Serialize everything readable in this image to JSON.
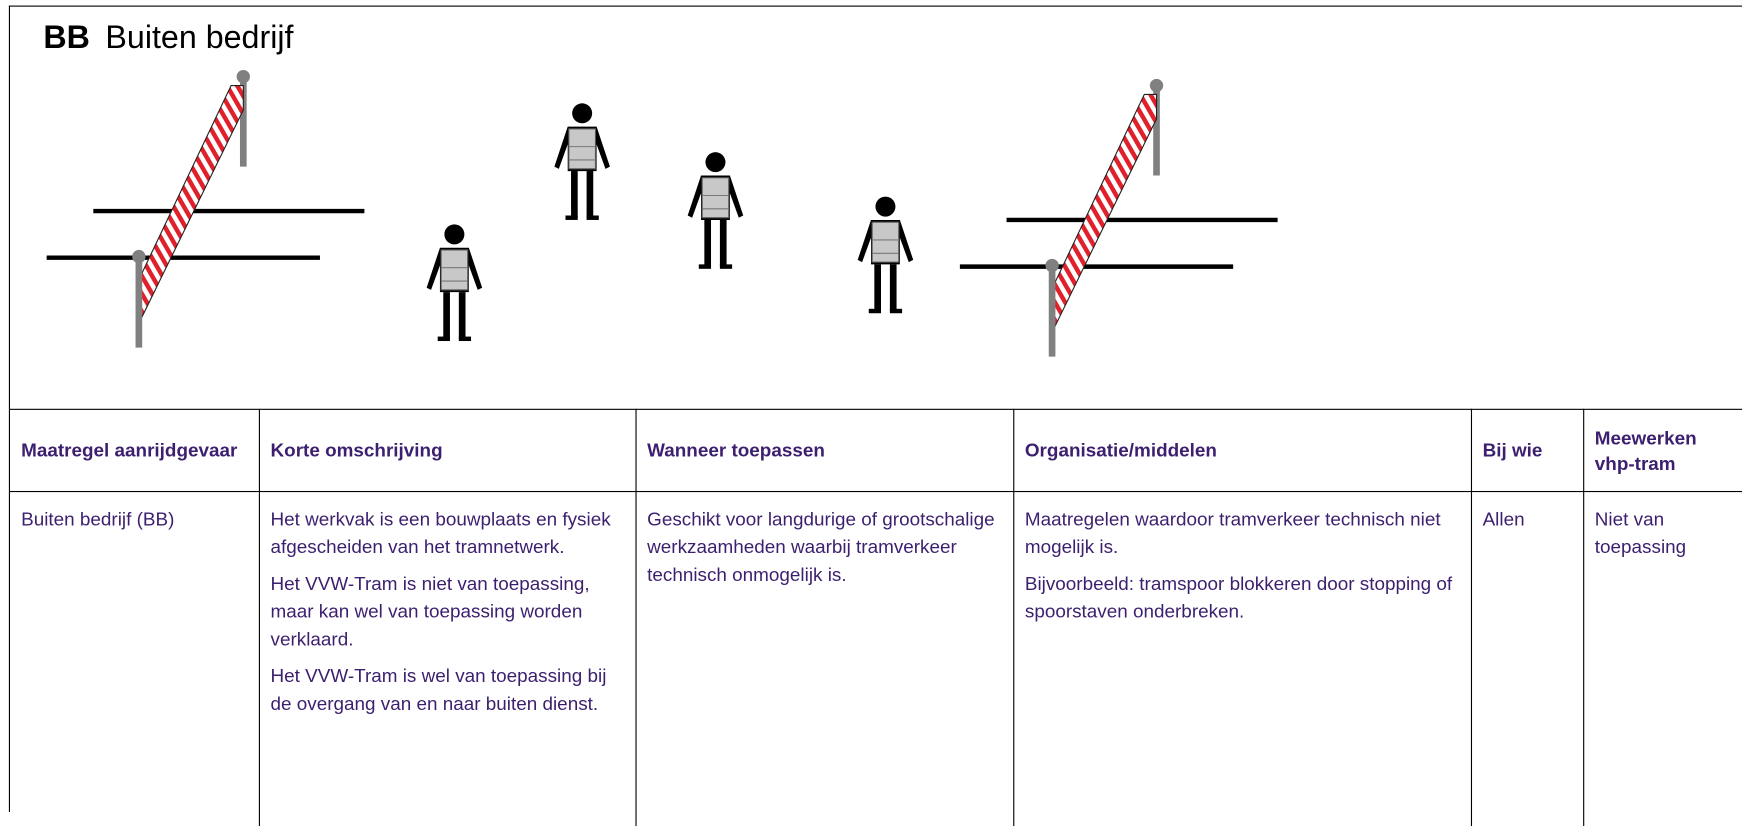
{
  "header": {
    "abbr": "BB",
    "title": "Buiten bedrijf"
  },
  "table": {
    "columns": [
      "Maatregel aanrijdgevaar",
      "Korte omschrijving",
      "Wanneer toepassen",
      "Organisatie/middelen",
      "Bij wie",
      "Meewerken vhp-tram"
    ],
    "rows": [
      [
        [
          "Buiten bedrijf (BB)"
        ],
        [
          "Het werkvak is een bouwplaats en fysiek afgescheiden van het tramnetwerk.",
          "Het VVW-Tram is niet van toepassing, maar kan wel van toepassing worden verklaard.",
          "Het VVW-Tram is wel van toepassing bij de overgang van en naar buiten dienst."
        ],
        [
          "Geschikt voor langdurige of grootschalige werkzaamheden waarbij tramverkeer technisch onmogelijk is."
        ],
        [
          "Maatregelen waardoor tramverkeer technisch niet mogelijk is.",
          "Bijvoorbeeld: tramspoor blokkeren door stopping of spoorstaven onderbreken."
        ],
        [
          "Allen"
        ],
        [
          "Niet van toepassing"
        ]
      ]
    ]
  }
}
